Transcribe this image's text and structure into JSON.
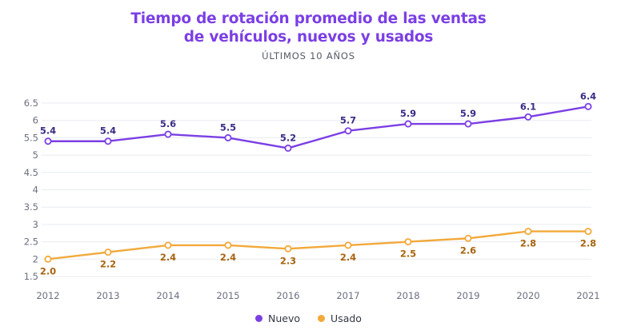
{
  "chart_data": {
    "type": "line",
    "title_line1": "Tiempo de rotación promedio de las ventas",
    "title_line2": "de vehículos, nuevos y usados",
    "subtitle": "ÚLTIMOS 10 AÑOS",
    "x": [
      "2012",
      "2013",
      "2014",
      "2015",
      "2016",
      "2017",
      "2018",
      "2019",
      "2020",
      "2021"
    ],
    "yticks": [
      "1.5",
      "2",
      "2.5",
      "3",
      "3.5",
      "4",
      "4.5",
      "5",
      "5.5",
      "6",
      "6.5"
    ],
    "ylim": [
      1.5,
      6.5
    ],
    "grid": true,
    "legend_position": "bottom-center",
    "series": [
      {
        "name": "Nuevo",
        "color": "#7b3fe4",
        "label_color": "#3a2e86",
        "label_position": "above",
        "values": [
          5.4,
          5.4,
          5.6,
          5.5,
          5.2,
          5.7,
          5.9,
          5.9,
          6.1,
          6.4
        ],
        "labels": [
          "5.4",
          "5.4",
          "5.6",
          "5.5",
          "5.2",
          "5.7",
          "5.9",
          "5.9",
          "6.1",
          "6.4"
        ]
      },
      {
        "name": "Usado",
        "color": "#f2a93b",
        "label_color": "#a8650f",
        "label_position": "below",
        "values": [
          2.0,
          2.2,
          2.4,
          2.4,
          2.3,
          2.4,
          2.5,
          2.6,
          2.8,
          2.8
        ],
        "labels": [
          "2.0",
          "2.2",
          "2.4",
          "2.4",
          "2.3",
          "2.4",
          "2.5",
          "2.6",
          "2.8",
          "2.8"
        ]
      }
    ]
  }
}
